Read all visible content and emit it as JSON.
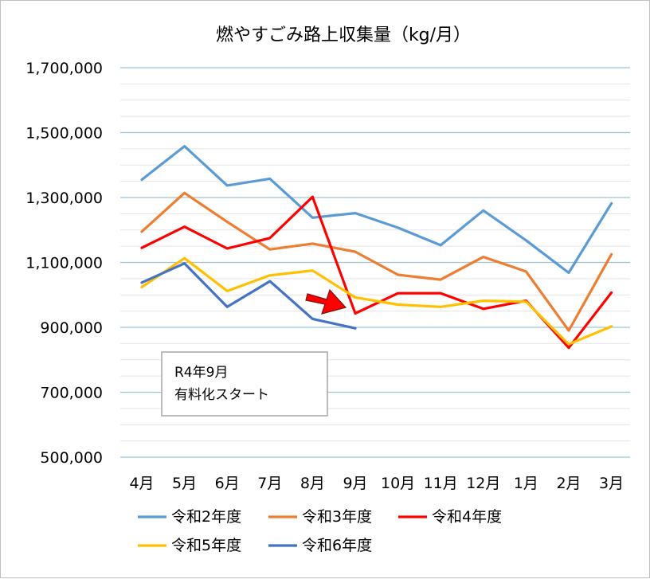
{
  "chart_data": {
    "type": "line",
    "title": "燃やすごみ路上収集量（kg/月）",
    "xlabel": "",
    "ylabel": "",
    "categories": [
      "4月",
      "5月",
      "6月",
      "7月",
      "8月",
      "9月",
      "10月",
      "11月",
      "12月",
      "1月",
      "2月",
      "3月"
    ],
    "ylim": [
      500000,
      1700000
    ],
    "yticks": [
      500000,
      700000,
      900000,
      1100000,
      1300000,
      1500000,
      1700000
    ],
    "ytick_labels": [
      "500,000",
      "700,000",
      "900,000",
      "1,100,000",
      "1,300,000",
      "1,500,000",
      "1,700,000"
    ],
    "grid": true,
    "legend_position": "bottom",
    "series": [
      {
        "name": "令和2年度",
        "color": "#5b9bd5",
        "values": [
          1355000,
          1458000,
          1337000,
          1358000,
          1238000,
          1252000,
          1207000,
          1153000,
          1260000,
          1168000,
          1068000,
          1282000
        ]
      },
      {
        "name": "令和3年度",
        "color": "#ed7d31",
        "values": [
          1195000,
          1314000,
          1225000,
          1140000,
          1158000,
          1133000,
          1062000,
          1047000,
          1117000,
          1072000,
          890000,
          1125000
        ]
      },
      {
        "name": "令和4年度",
        "color": "#ff0000",
        "values": [
          1145000,
          1210000,
          1143000,
          1175000,
          1302000,
          943000,
          1005000,
          1005000,
          957000,
          982000,
          837000,
          1007000
        ]
      },
      {
        "name": "令和5年度",
        "color": "#ffc000",
        "values": [
          1024000,
          1113000,
          1012000,
          1060000,
          1075000,
          992000,
          970000,
          963000,
          982000,
          979000,
          848000,
          903000
        ]
      },
      {
        "name": "令和6年度",
        "color": "#4472c4",
        "values": [
          1038000,
          1097000,
          963000,
          1042000,
          926000,
          897000,
          null,
          null,
          null,
          null,
          null,
          null
        ]
      }
    ],
    "annotations": [
      {
        "lines": [
          "R4年9月",
          "有料化スタート"
        ]
      }
    ]
  }
}
